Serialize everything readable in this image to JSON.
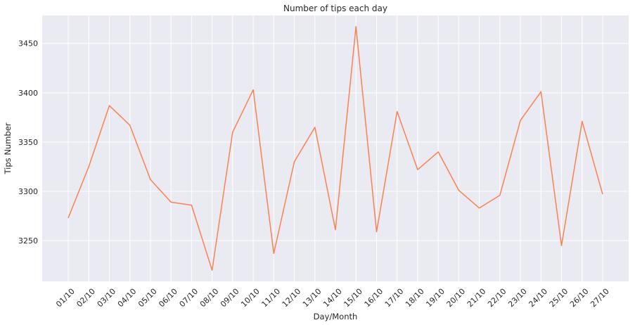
{
  "chart_data": {
    "type": "line",
    "title": "Number of tips each day",
    "xlabel": "Day/Month",
    "ylabel": "Tips Number",
    "categories": [
      "01/10",
      "02/10",
      "03/10",
      "04/10",
      "05/10",
      "06/10",
      "07/10",
      "08/10",
      "09/10",
      "10/10",
      "11/10",
      "12/10",
      "13/10",
      "14/10",
      "15/10",
      "16/10",
      "17/10",
      "18/10",
      "19/10",
      "20/10",
      "21/10",
      "22/10",
      "23/10",
      "24/10",
      "25/10",
      "26/10",
      "27/10"
    ],
    "series": [
      {
        "values": [
          3273,
          3325,
          3387,
          3367,
          3312,
          3289,
          3286,
          3220,
          3360,
          3403,
          3237,
          3330,
          3365,
          3261,
          3467,
          3259,
          3381,
          3322,
          3340,
          3301,
          3283,
          3296,
          3372,
          3401,
          3245,
          3371,
          3297
        ]
      }
    ],
    "yticks": [
      3250,
      3300,
      3350,
      3400,
      3450
    ],
    "ylim": [
      3208.7,
      3478.35
    ],
    "grid": true,
    "line_color": "#ff7f50",
    "background_color": "#eaeaf2",
    "grid_color": "#ffffff"
  }
}
